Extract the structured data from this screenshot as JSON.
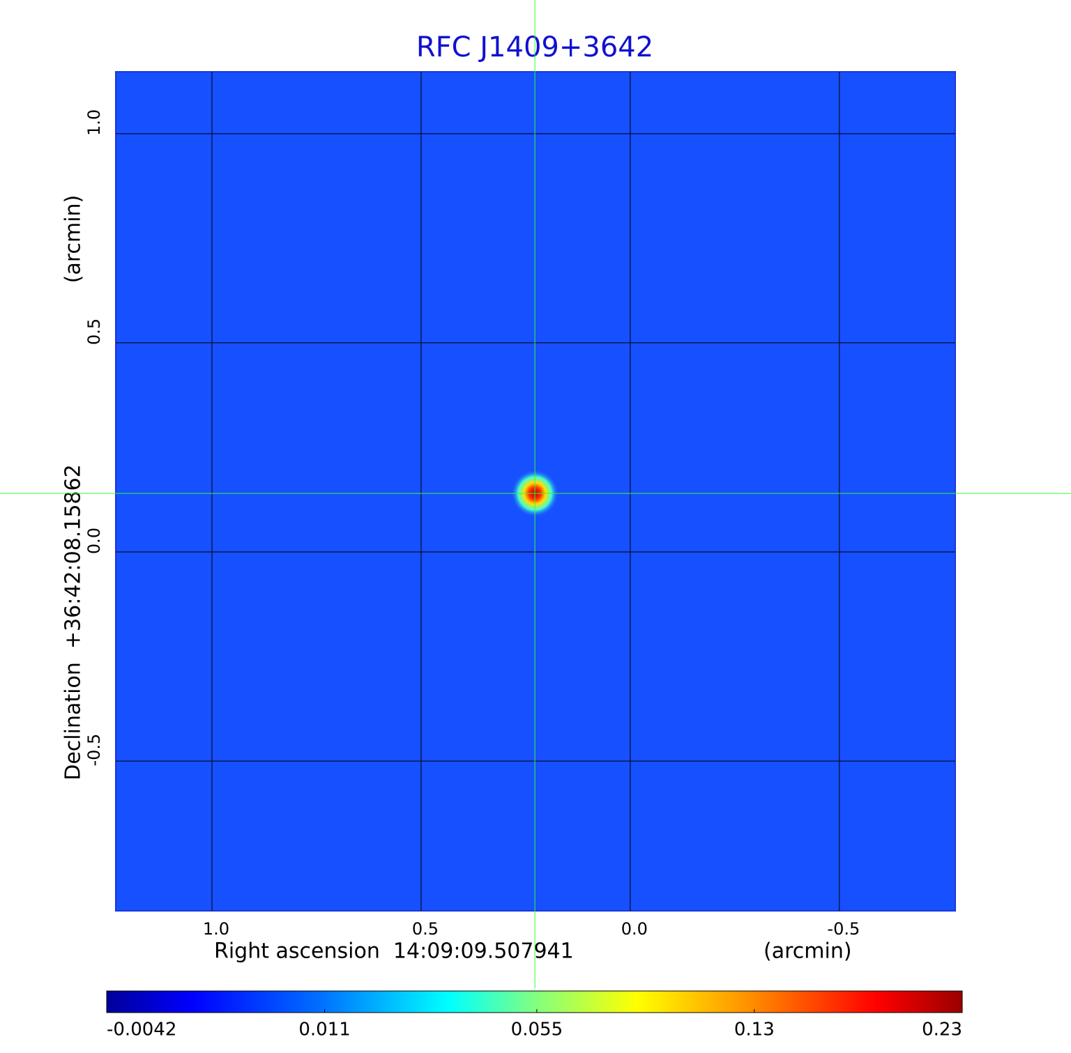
{
  "chart_data": {
    "type": "image",
    "title": "RFC J1409+3642",
    "xlabel": "Right ascension  14:09:09.507941",
    "xunit": "(arcmin)",
    "ylabel": "Declination  +36:42:08.15862",
    "yunit": "(arcmin)",
    "xlim": [
      1.23,
      -0.777
    ],
    "ylim": [
      -0.858,
      1.148
    ],
    "xticks": [
      {
        "value": 1.0,
        "label": "1.0"
      },
      0.5,
      {
        "value": 0.0,
        "label": "0.0"
      },
      -0.5
    ],
    "yticks": [
      -0.5,
      {
        "value": 0.0,
        "label": "0.0"
      },
      0.5,
      {
        "value": 1.0,
        "label": "1.0"
      }
    ],
    "grid": true,
    "crosshair": {
      "x": 0.228,
      "y": 0.14
    },
    "colorbar": {
      "scale": "sqrt",
      "clim": [
        -0.0042,
        0.23
      ],
      "ticks": [
        -0.0042,
        0.011,
        0.055,
        0.13,
        0.23
      ]
    }
  }
}
